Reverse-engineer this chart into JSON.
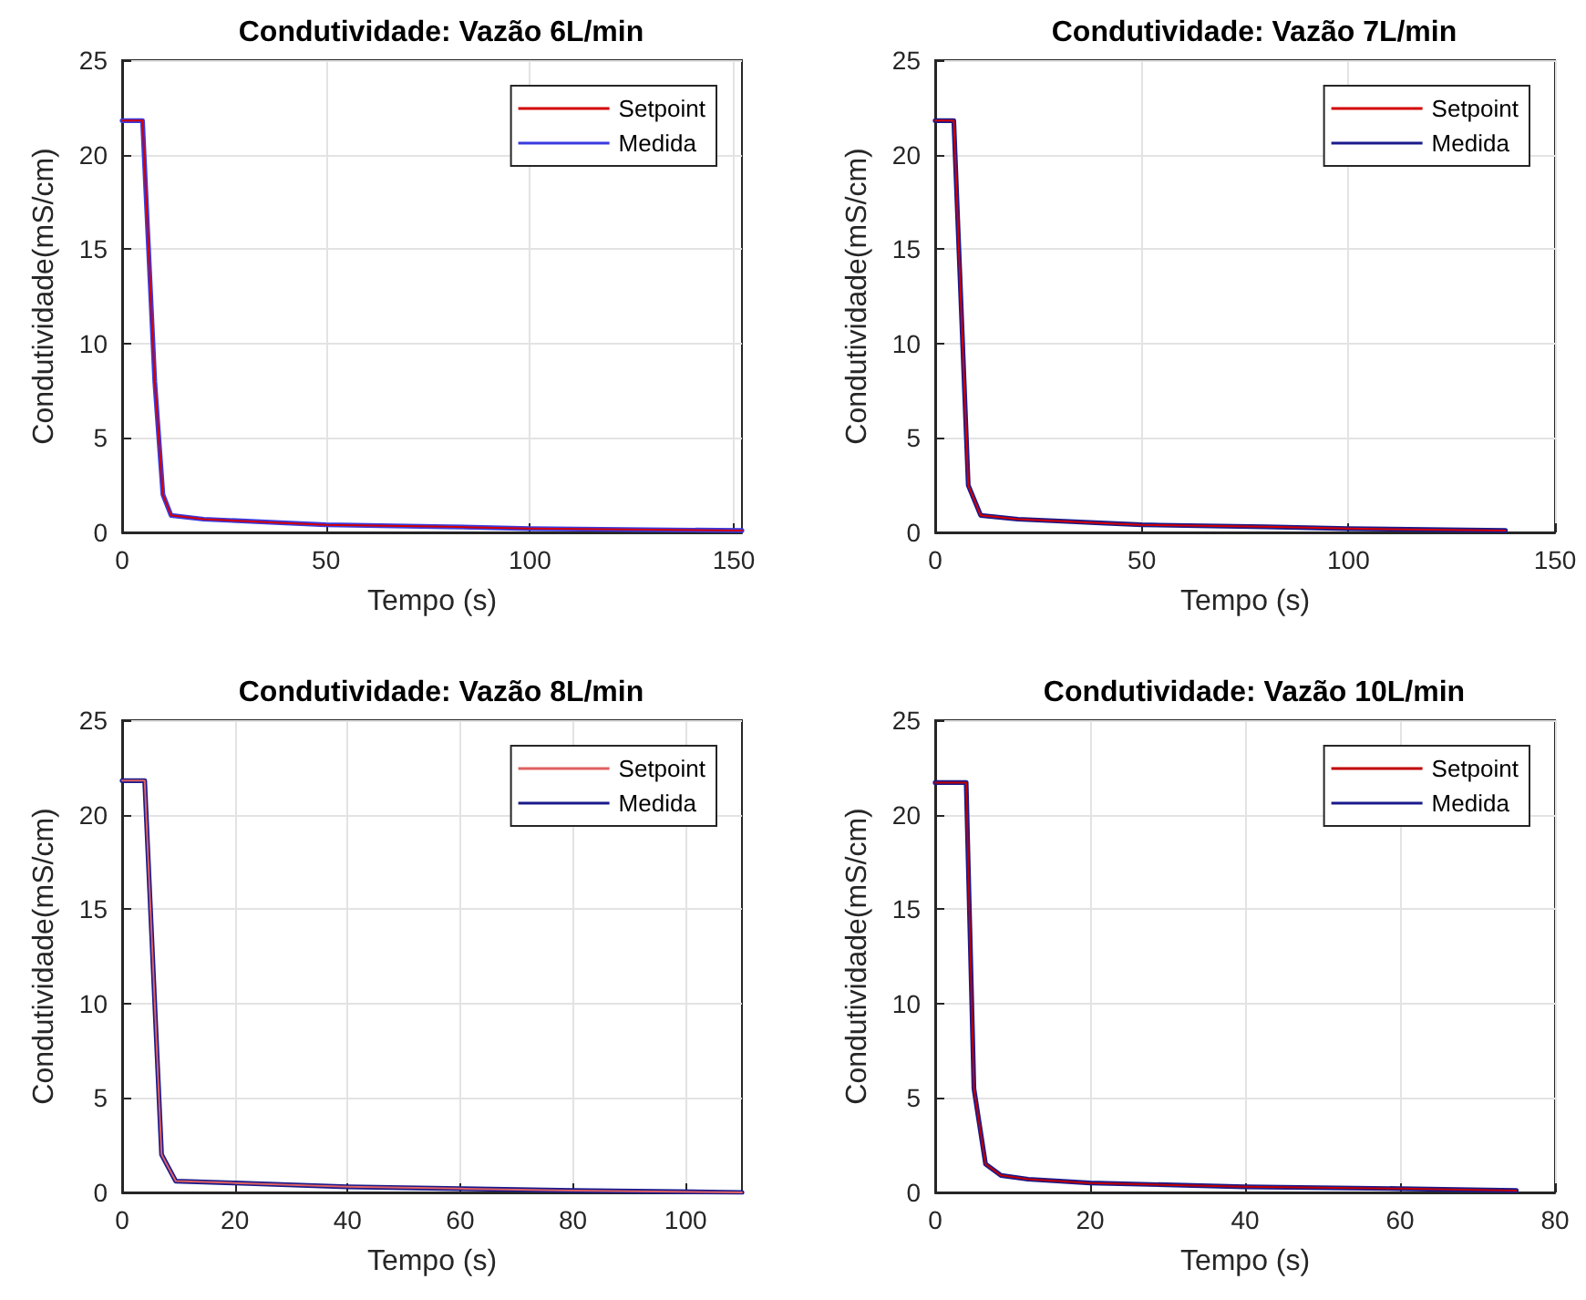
{
  "chart_data": [
    {
      "type": "line",
      "title": "Condutividade: Vazão 6L/min",
      "xlabel": "Tempo (s)",
      "ylabel": "Condutividade(mS/cm)",
      "xlim": [
        0,
        152
      ],
      "xticks": [
        0,
        50,
        100,
        150
      ],
      "ylim": [
        0,
        25
      ],
      "yticks": [
        0,
        5,
        10,
        15,
        20,
        25
      ],
      "grid": true,
      "legend": "top right",
      "series": [
        {
          "name": "Setpoint",
          "color": "#d40000",
          "x": [
            0,
            5,
            8,
            10,
            12,
            20,
            40,
            50,
            80,
            100,
            152
          ],
          "values": [
            21.8,
            21.8,
            8,
            2,
            0.9,
            0.7,
            0.5,
            0.4,
            0.3,
            0.2,
            0.1
          ]
        },
        {
          "name": "Medida",
          "color": "#3a3ae0",
          "x": [
            0,
            5,
            8,
            10,
            12,
            20,
            40,
            50,
            80,
            100,
            152
          ],
          "values": [
            21.8,
            21.8,
            8,
            2,
            0.9,
            0.7,
            0.5,
            0.4,
            0.3,
            0.2,
            0.1
          ]
        }
      ]
    },
    {
      "type": "line",
      "title": "Condutividade: Vazão 7L/min",
      "xlabel": "Tempo (s)",
      "ylabel": "Condutividade(mS/cm)",
      "xlim": [
        0,
        150
      ],
      "xticks": [
        0,
        50,
        100,
        150
      ],
      "ylim": [
        0,
        25
      ],
      "yticks": [
        0,
        5,
        10,
        15,
        20,
        25
      ],
      "grid": true,
      "legend": "top right",
      "series": [
        {
          "name": "Setpoint",
          "color": "#d40000",
          "x": [
            0,
            4.5,
            8,
            11,
            20,
            40,
            50,
            80,
            100,
            138
          ],
          "values": [
            21.8,
            21.8,
            2.5,
            0.9,
            0.7,
            0.5,
            0.4,
            0.3,
            0.2,
            0.1
          ]
        },
        {
          "name": "Medida",
          "color": "#1a1a8c",
          "x": [
            0,
            4.5,
            8,
            11,
            20,
            40,
            50,
            80,
            100,
            138
          ],
          "values": [
            21.8,
            21.8,
            2.5,
            0.9,
            0.7,
            0.5,
            0.4,
            0.3,
            0.2,
            0.1
          ]
        }
      ]
    },
    {
      "type": "line",
      "title": "Condutividade: Vazão 8L/min",
      "xlabel": "Tempo (s)",
      "ylabel": "Condutividade(mS/cm)",
      "xlim": [
        0,
        110
      ],
      "xticks": [
        0,
        20,
        40,
        60,
        80,
        100
      ],
      "ylim": [
        0,
        25
      ],
      "yticks": [
        0,
        5,
        10,
        15,
        20,
        25
      ],
      "grid": true,
      "legend": "top right",
      "series": [
        {
          "name": "Setpoint",
          "color": "#e06060",
          "x": [
            0,
            4,
            7,
            9.5,
            20,
            40,
            60,
            80,
            110
          ],
          "values": [
            21.8,
            21.8,
            2,
            0.6,
            0.5,
            0.3,
            0.2,
            0.1,
            0
          ]
        },
        {
          "name": "Medida",
          "color": "#1a1a8c",
          "x": [
            0,
            4,
            7,
            9.5,
            20,
            40,
            60,
            80,
            110
          ],
          "values": [
            21.8,
            21.8,
            2,
            0.6,
            0.5,
            0.3,
            0.2,
            0.1,
            0
          ]
        }
      ]
    },
    {
      "type": "line",
      "title": "Condutividade: Vazão 10L/min",
      "xlabel": "Tempo (s)",
      "ylabel": "Condutividade(mS/cm)",
      "xlim": [
        0,
        80
      ],
      "xticks": [
        0,
        20,
        40,
        60,
        80
      ],
      "ylim": [
        0,
        25
      ],
      "yticks": [
        0,
        5,
        10,
        15,
        20,
        25
      ],
      "grid": true,
      "legend": "top right",
      "series": [
        {
          "name": "Setpoint",
          "color": "#c00000",
          "x": [
            0,
            4,
            5,
            6.5,
            8.5,
            12,
            20,
            40,
            60,
            75
          ],
          "values": [
            21.7,
            21.7,
            5.5,
            1.5,
            0.9,
            0.7,
            0.5,
            0.3,
            0.2,
            0.1
          ]
        },
        {
          "name": "Medida",
          "color": "#1a1a8c",
          "x": [
            0,
            4,
            5,
            6.5,
            8.5,
            12,
            20,
            40,
            60,
            75
          ],
          "values": [
            21.7,
            21.7,
            5.5,
            1.5,
            0.9,
            0.7,
            0.5,
            0.3,
            0.2,
            0.1
          ]
        }
      ]
    }
  ]
}
